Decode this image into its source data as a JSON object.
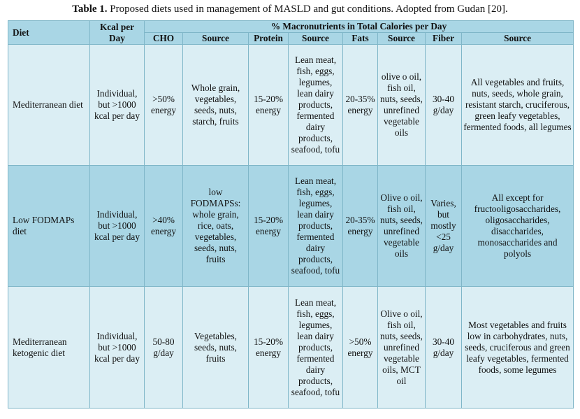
{
  "caption": {
    "label": "Table 1.",
    "text": " Proposed diets used in management of MASLD and gut conditions. Adopted from Gudan [20]."
  },
  "header": {
    "diet": "Diet",
    "kcal": "Kcal per Day",
    "macros": "% Macronutrients in Total Calories per Day",
    "cho": "CHO",
    "source1": "Source",
    "protein": "Protein",
    "source2": "Source",
    "fats": "Fats",
    "source3": "Source",
    "fiber": "Fiber",
    "source4": "Source"
  },
  "rows": [
    {
      "diet": "Mediterranean diet",
      "kcal": "Individual, but >1000 kcal per day",
      "cho": ">50% energy",
      "cho_source": "Whole grain, vegetables, seeds, nuts, starch, fruits",
      "protein": "15-20% energy",
      "protein_source": "Lean meat, fish, eggs, legumes, lean dairy products, fermented dairy products, seafood, tofu",
      "fats": "20-35% energy",
      "fats_source": "olive o oil, fish oil, nuts, seeds, unrefined vegetable oils",
      "fiber": "30-40 g/day",
      "fiber_source": "All vegetables and fruits, nuts, seeds, whole grain, resistant starch, cruciferous, green leafy vegetables, fermented foods, all legumes"
    },
    {
      "diet": "Low FODMAPs diet",
      "kcal": "Individual, but >1000 kcal per day",
      "cho": ">40% energy",
      "cho_source": "low FODMAPSs: whole grain, rice, oats, vegetables, seeds, nuts, fruits",
      "protein": "15-20% energy",
      "protein_source": "Lean meat, fish, eggs, legumes, lean dairy products, fermented dairy products, seafood, tofu",
      "fats": "20-35% energy",
      "fats_source": "Olive o oil, fish oil, nuts, seeds, unrefined vegetable oils",
      "fiber": "Varies, but mostly <25 g/day",
      "fiber_source": "All except for fructooligosaccharides, oligosaccharides, disaccharides, monosaccharides and polyols"
    },
    {
      "diet": "Mediterranean ketogenic diet",
      "kcal": "Individual, but >1000 kcal per day",
      "cho": "50-80 g/day",
      "cho_source": "Vegetables, seeds, nuts, fruits",
      "protein": "15-20% energy",
      "protein_source": "Lean meat, fish, eggs, legumes, lean dairy products, fermented dairy products, seafood, tofu",
      "fats": ">50% energy",
      "fats_source": "Olive o oil, fish oil, nuts, seeds, unrefined vegetable oils, MCT oil",
      "fiber": "30-40 g/day",
      "fiber_source": "Most vegetables and fruits low in carbohydrates, nuts, seeds, cruciferous and green leafy vegetables, fermented foods, some legumes"
    }
  ]
}
